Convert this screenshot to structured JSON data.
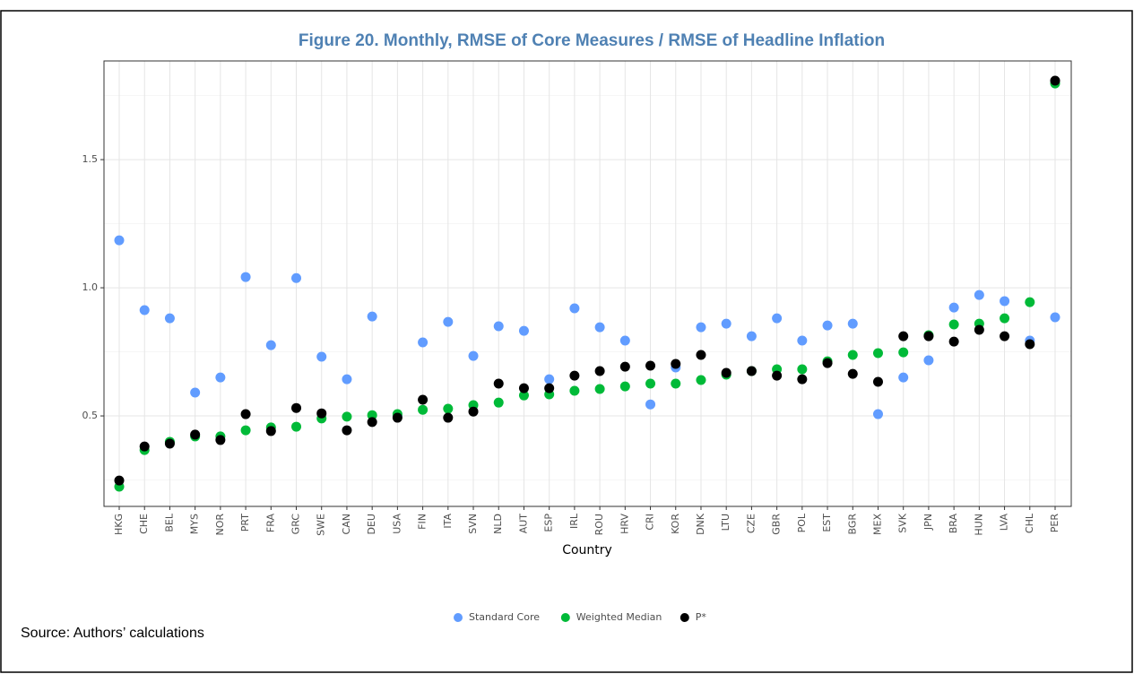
{
  "chart_data": {
    "type": "scatter",
    "title": "Figure 20. Monthly, RMSE of Core Measures / RMSE of Headline Inflation",
    "x_label": "Country",
    "source": "Source: Authors’ calculations",
    "categories": [
      "HKG",
      "CHE",
      "BEL",
      "MYS",
      "NOR",
      "PRT",
      "FRA",
      "GRC",
      "SWE",
      "CAN",
      "DEU",
      "USA",
      "FIN",
      "ITA",
      "SVN",
      "NLD",
      "AUT",
      "ESP",
      "IRL",
      "ROU",
      "HRV",
      "CRI",
      "KOR",
      "DNK",
      "LTU",
      "CZE",
      "GBR",
      "POL",
      "EST",
      "BGR",
      "MEX",
      "SVK",
      "JPN",
      "BRA",
      "HUN",
      "LVA",
      "CHL",
      "PER"
    ],
    "series": [
      {
        "name": "Standard Core",
        "color": "#619CFF",
        "values": [
          1.185,
          0.913,
          0.881,
          0.591,
          0.65,
          1.042,
          0.776,
          1.038,
          0.731,
          0.643,
          0.888,
          0.5,
          0.787,
          0.867,
          0.734,
          0.85,
          0.832,
          0.643,
          0.92,
          0.846,
          0.794,
          0.545,
          0.689,
          0.846,
          0.86,
          0.811,
          0.881,
          0.794,
          0.853,
          0.86,
          0.507,
          0.65,
          0.717,
          0.923,
          0.972,
          0.948,
          0.794,
          0.885
        ]
      },
      {
        "name": "Weighted Median",
        "color": "#00BA38",
        "values": [
          0.224,
          0.367,
          0.399,
          0.42,
          0.42,
          0.444,
          0.455,
          0.458,
          0.49,
          0.497,
          0.503,
          0.507,
          0.524,
          0.528,
          0.542,
          0.552,
          0.58,
          0.584,
          0.598,
          0.605,
          0.615,
          0.626,
          0.626,
          0.64,
          0.661,
          0.675,
          0.682,
          0.682,
          0.713,
          0.738,
          0.745,
          0.748,
          0.815,
          0.857,
          0.86,
          0.881,
          0.944,
          1.797
        ]
      },
      {
        "name": "P*",
        "color": "#000000",
        "values": [
          0.248,
          0.381,
          0.392,
          0.427,
          0.406,
          0.507,
          0.441,
          0.531,
          0.51,
          0.444,
          0.476,
          0.493,
          0.563,
          0.493,
          0.517,
          0.626,
          0.608,
          0.608,
          0.657,
          0.675,
          0.692,
          0.696,
          0.703,
          0.738,
          0.668,
          0.675,
          0.657,
          0.643,
          0.706,
          0.664,
          0.633,
          0.811,
          0.811,
          0.79,
          0.836,
          0.811,
          0.78,
          1.808
        ]
      }
    ],
    "ylim": [
      0.147,
      1.885
    ],
    "yticks": [
      0.5,
      {
        "value": 1,
        "label": "1.0"
      },
      1.5
    ],
    "grid": true,
    "legend_position": "bottom"
  }
}
